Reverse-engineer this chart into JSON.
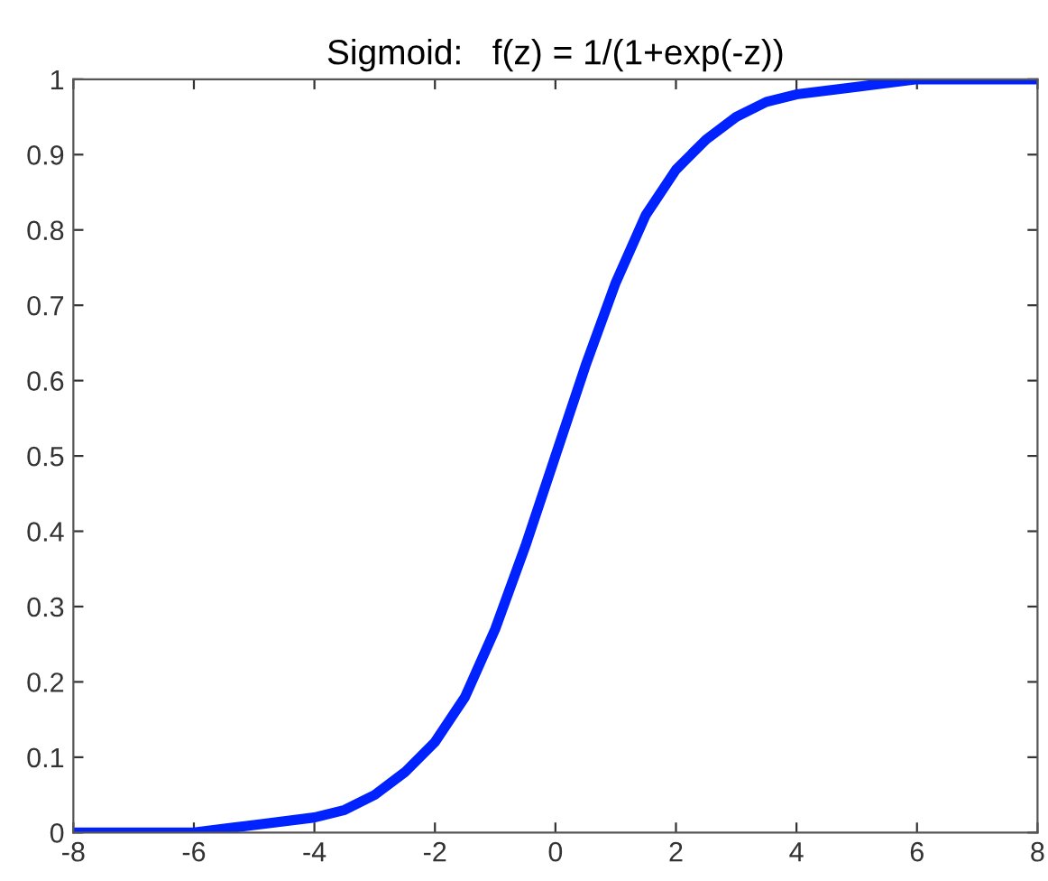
{
  "chart_data": {
    "type": "line",
    "title": "Sigmoid:   f(z) = 1/(1+exp(-z))",
    "x": [
      -8,
      -7,
      -6,
      -5,
      -4,
      -3.5,
      -3,
      -2.5,
      -2,
      -1.5,
      -1,
      -0.5,
      0,
      0.5,
      1,
      1.5,
      2,
      2.5,
      3,
      3.5,
      4,
      5,
      6,
      7,
      8
    ],
    "series": [
      {
        "color": "#0022ff",
        "values": [
          0,
          0,
          0,
          0.01,
          0.02,
          0.03,
          0.05,
          0.08,
          0.12,
          0.18,
          0.27,
          0.38,
          0.5,
          0.62,
          0.73,
          0.82,
          0.88,
          0.92,
          0.95,
          0.97,
          0.98,
          0.99,
          1,
          1,
          1
        ]
      }
    ],
    "xlim": [
      -8,
      8
    ],
    "ylim": [
      0,
      1
    ],
    "xticks": [
      -8,
      -6,
      -4,
      -2,
      0,
      2,
      4,
      6,
      8
    ],
    "yticks": [
      0,
      0.1,
      0.2,
      0.3,
      0.4,
      0.5,
      0.6,
      0.7,
      0.8,
      0.9,
      1
    ],
    "grid": false,
    "legend": false,
    "marker": "none",
    "line_style": "solid"
  }
}
